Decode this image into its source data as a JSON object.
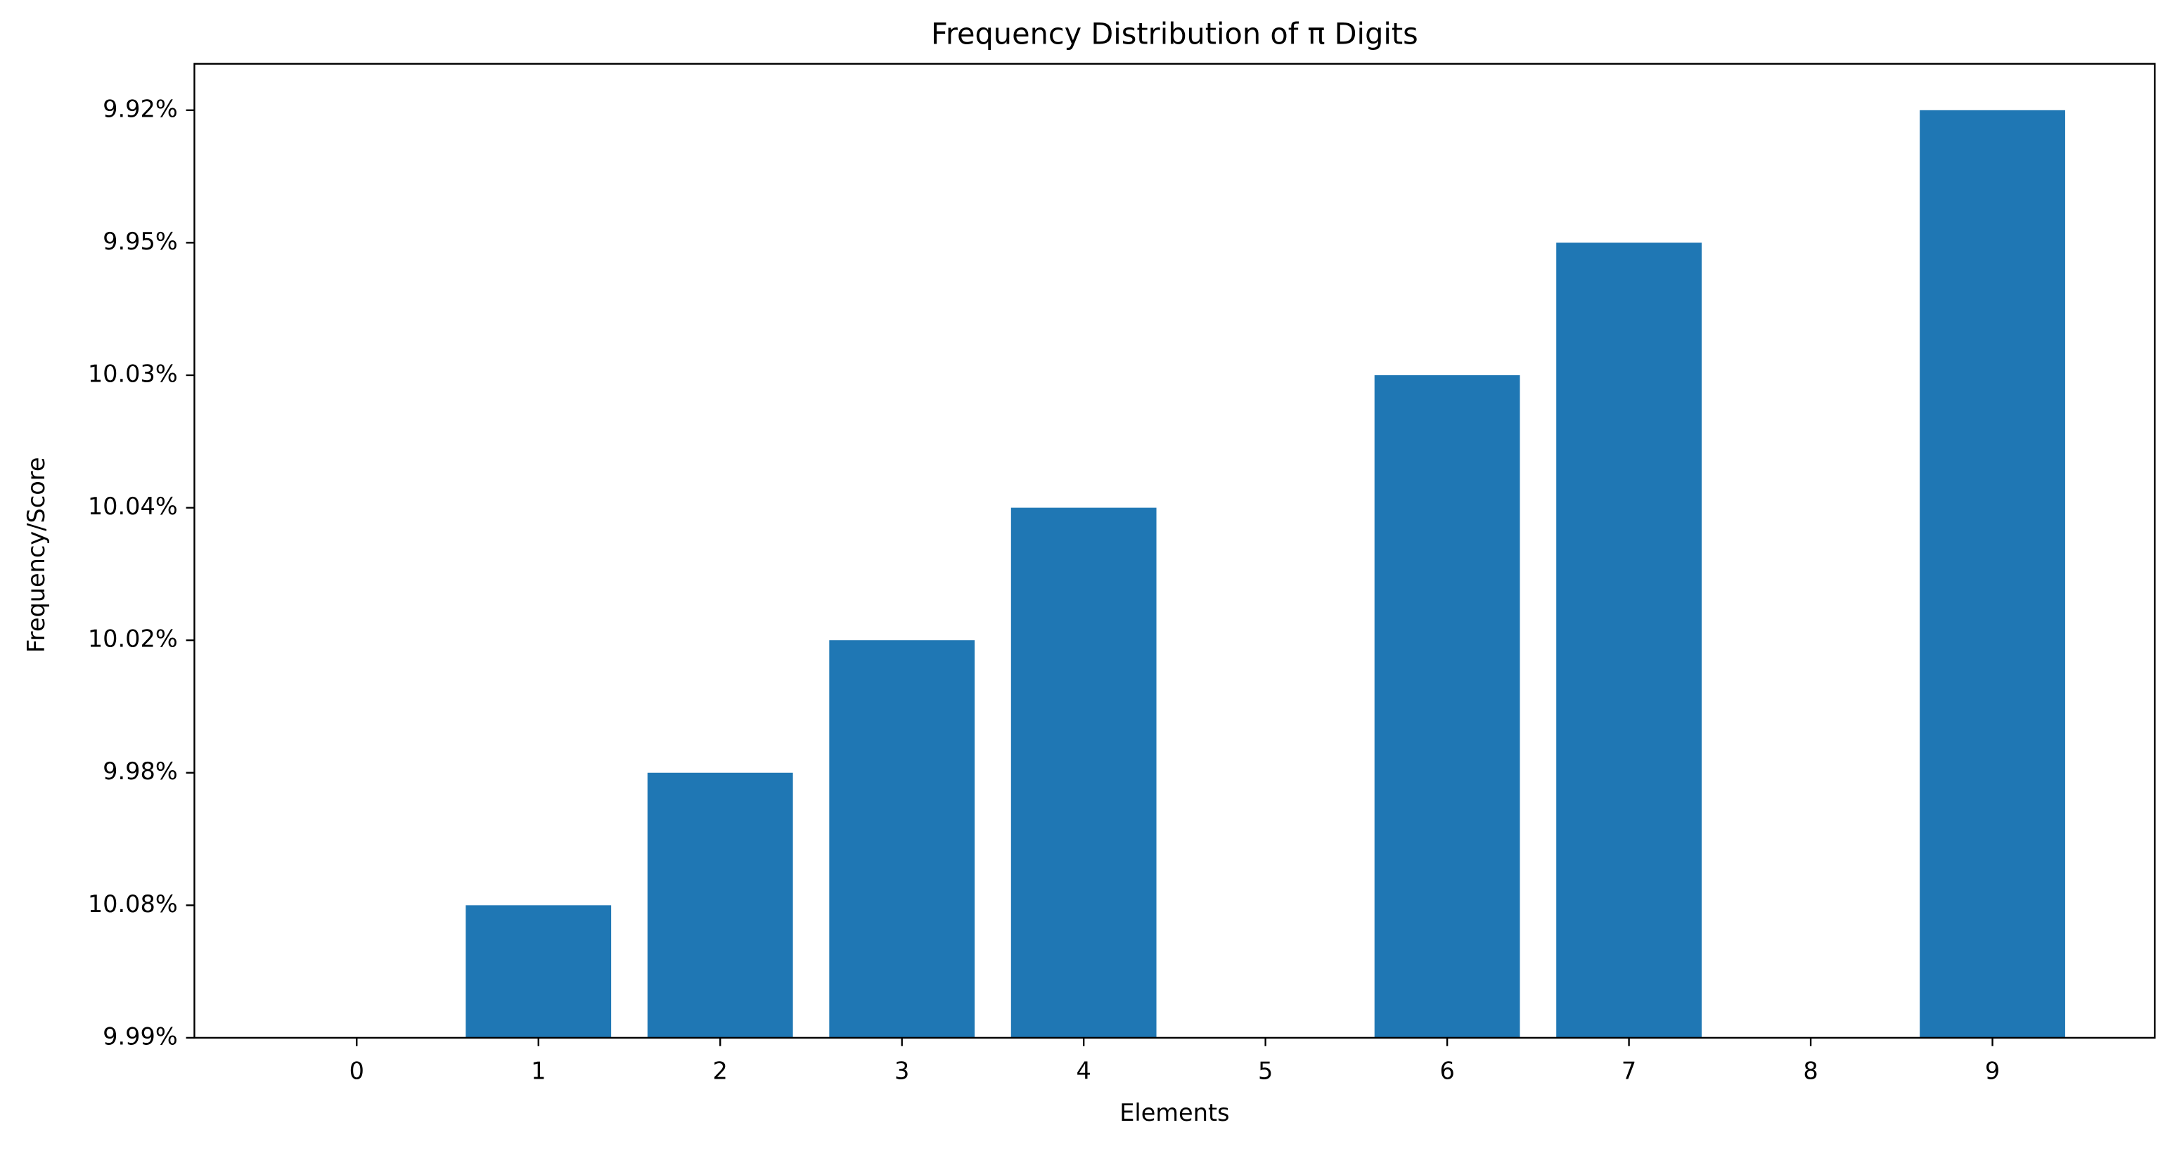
{
  "chart_data": {
    "type": "bar",
    "title": "Frequency Distribution of π Digits",
    "x_label": "Elements",
    "y_label": "Frequency/Score",
    "categories": [
      "0",
      "1",
      "2",
      "3",
      "4",
      "5",
      "6",
      "7",
      "8",
      "9"
    ],
    "values": [
      0,
      1,
      2,
      3,
      4,
      0,
      5,
      6,
      0,
      7
    ],
    "color": "#1f77b4",
    "ylim": [
      0,
      7.35
    ],
    "yticks": [
      {
        "value": 0,
        "label": "9.99%"
      },
      {
        "value": 1,
        "label": "10.08%"
      },
      {
        "value": 2,
        "label": "9.98%"
      },
      {
        "value": 3,
        "label": "10.02%"
      },
      {
        "value": 4,
        "label": "10.04%"
      },
      {
        "value": 5,
        "label": "10.03%"
      },
      {
        "value": 6,
        "label": "9.95%"
      },
      {
        "value": 7,
        "label": "9.92%"
      }
    ],
    "grid": false
  }
}
